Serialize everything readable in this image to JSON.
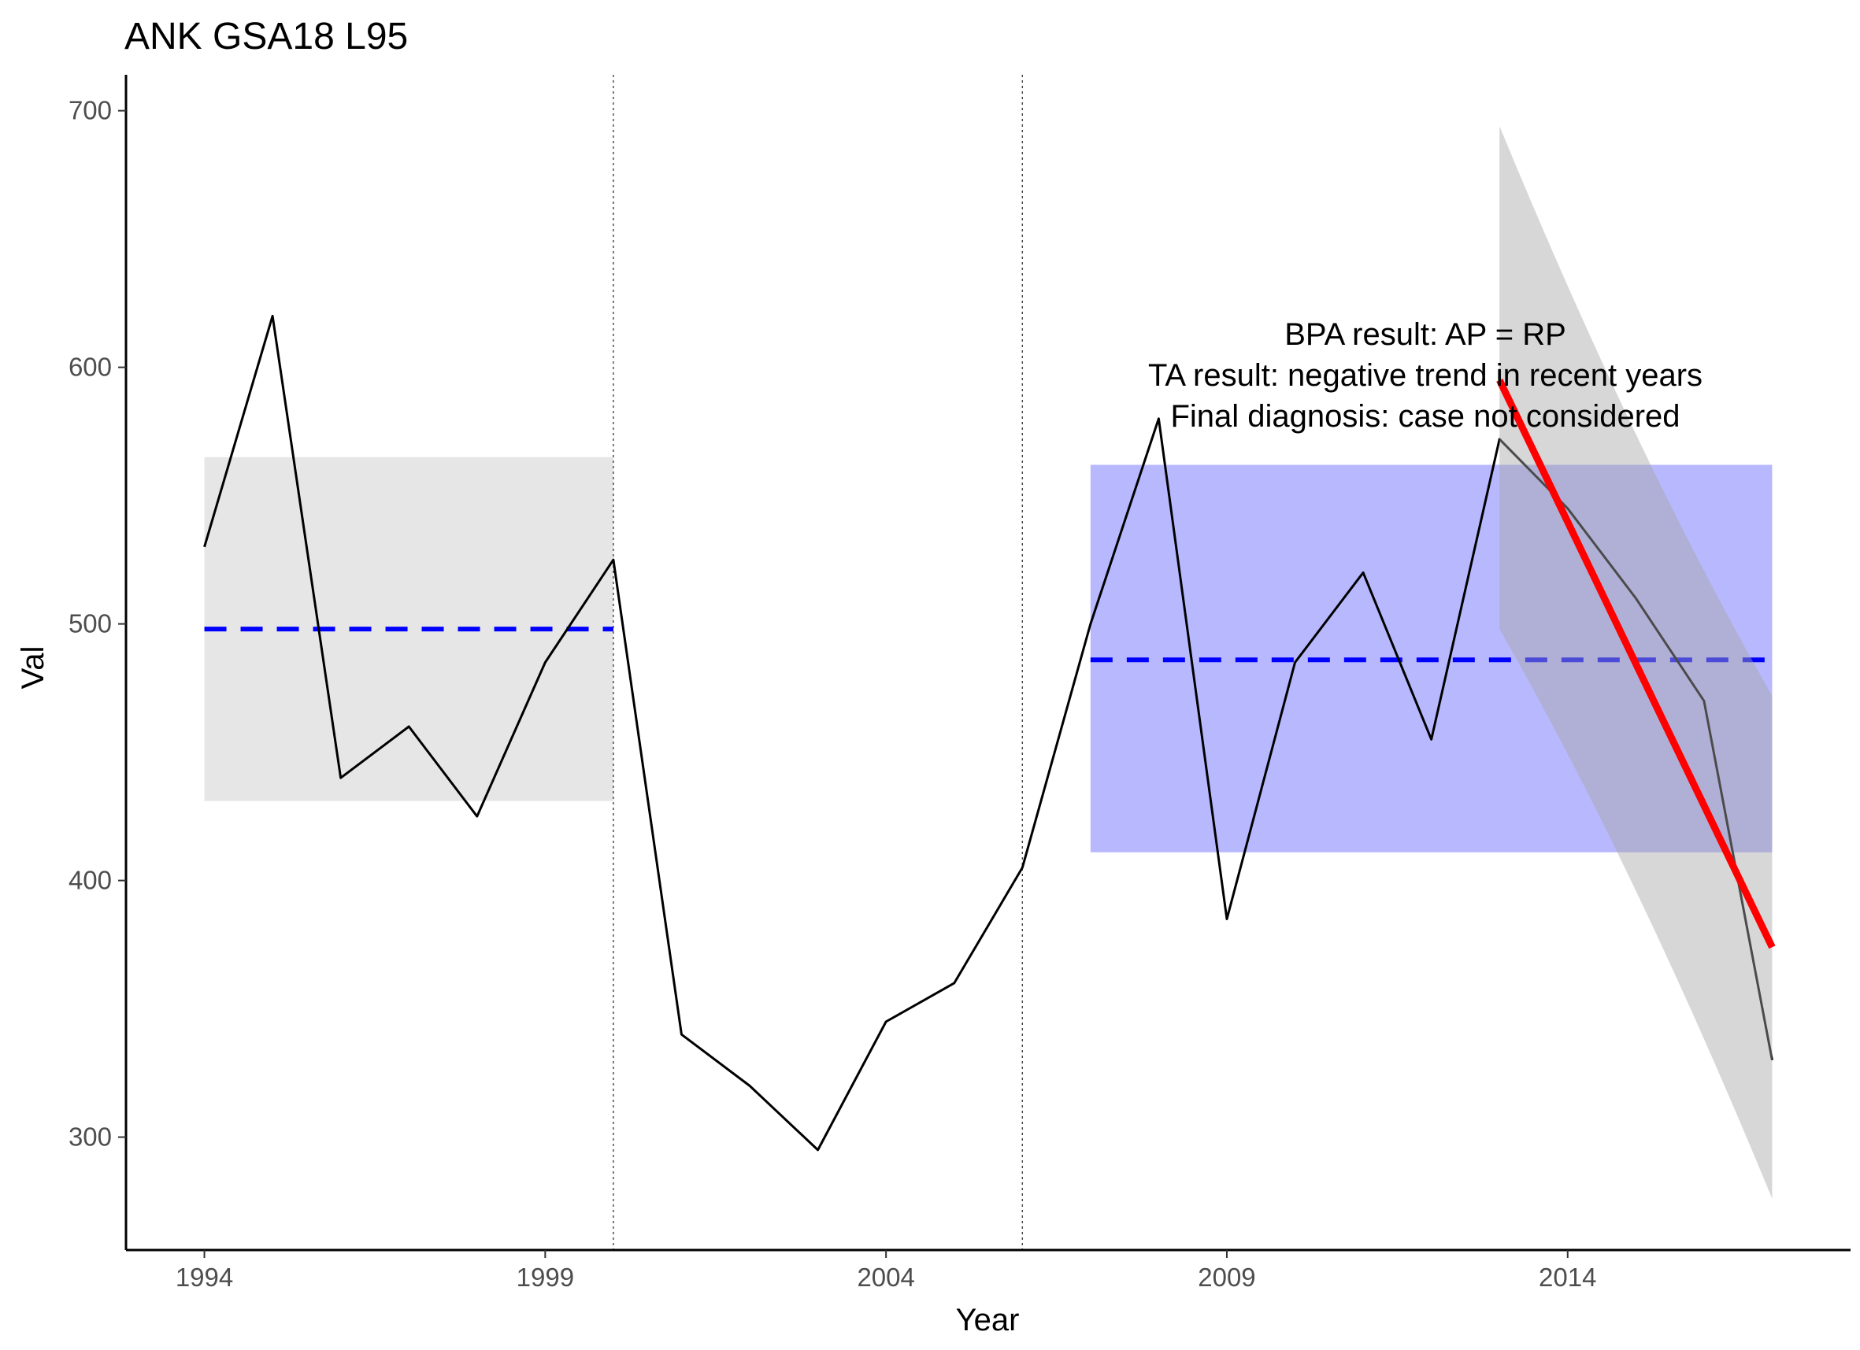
{
  "chart_data": {
    "type": "line",
    "title": "ANK GSA18 L95",
    "xlabel": "Year",
    "ylabel": "Val",
    "xlim": [
      1992.85,
      2018.15
    ],
    "ylim": [
      256,
      714
    ],
    "x_ticks": [
      1994,
      1999,
      2004,
      2009,
      2014
    ],
    "y_ticks": [
      300,
      400,
      500,
      600,
      700
    ],
    "grid": false,
    "series": [
      {
        "x": [
          1994,
          1995,
          1996,
          1997,
          1998,
          1999,
          2000,
          2001,
          2002,
          2003,
          2004,
          2005,
          2006,
          2007,
          2008,
          2009,
          2010,
          2011,
          2012,
          2013,
          2014,
          2015,
          2016,
          2017
        ],
        "values": [
          530,
          620,
          440,
          460,
          425,
          485,
          525,
          340,
          320,
          295,
          345,
          360,
          405,
          500,
          580,
          385,
          485,
          520,
          455,
          572,
          545,
          510,
          470,
          330
        ]
      }
    ],
    "reference_period": {
      "x_range": [
        1994,
        2000
      ],
      "mean": 498,
      "band": [
        431,
        565
      ]
    },
    "assessment_period": {
      "x_range": [
        2007,
        2017
      ],
      "mean": 486,
      "band": [
        411,
        562
      ]
    },
    "breakpoints": [
      2000,
      2006
    ],
    "trend": {
      "x_range": [
        2013,
        2017
      ],
      "fit": [
        595,
        374
      ],
      "ci_upper": [
        694,
        472
      ],
      "ci_lower": [
        498,
        276
      ]
    },
    "annotations": [
      "BPA result: AP = RP",
      "TA result: negative trend in recent years",
      "Final diagnosis: case not considered"
    ],
    "colors": {
      "line": "#000000",
      "mean_line": "#0000ff",
      "reference_band": "#e6e6e6",
      "assessment_band": "#b8b8ff",
      "trend_line": "#ff0000",
      "trend_ci": "#a6a6a6"
    }
  }
}
